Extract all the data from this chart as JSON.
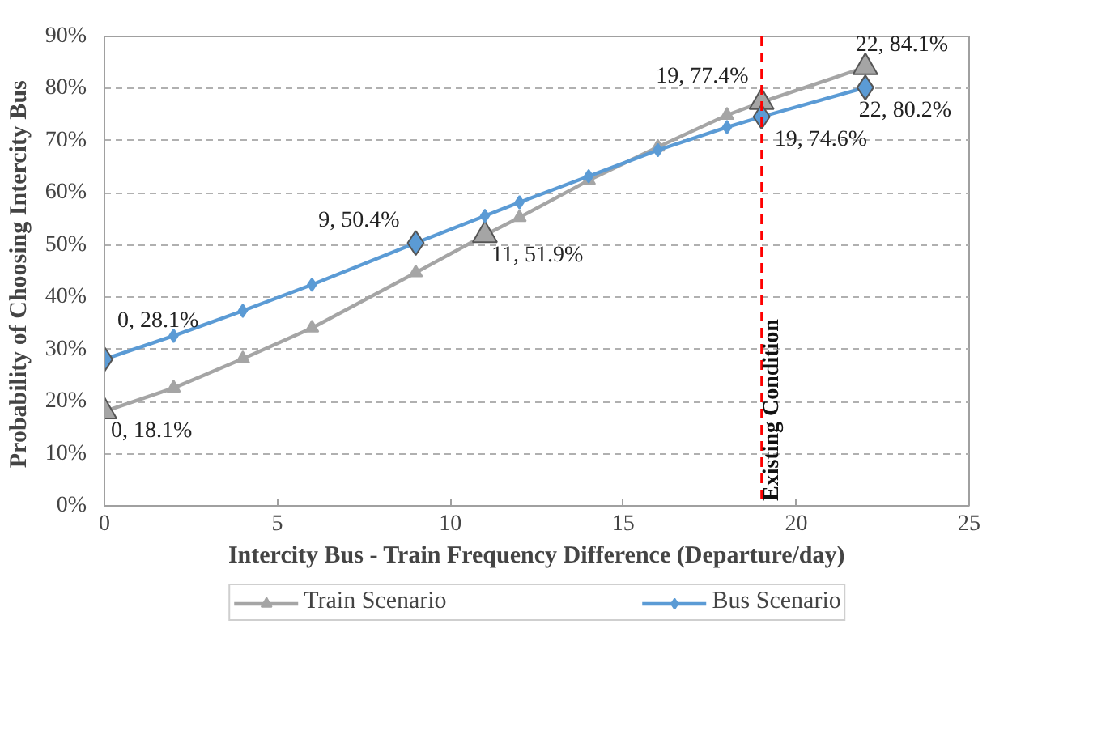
{
  "chart_data": {
    "type": "line",
    "xlabel": "Intercity Bus - Train Frequency Difference (Departure/day)",
    "ylabel": "Probability of Choosing  Intercity Bus",
    "xlim": [
      0,
      25
    ],
    "xticks": [
      0,
      5,
      10,
      15,
      20,
      25
    ],
    "ylim": [
      0,
      90
    ],
    "yticks": [
      {
        "value": 0,
        "label": "0%"
      },
      {
        "value": 10,
        "label": "10%"
      },
      {
        "value": 20,
        "label": "20%"
      },
      {
        "value": 30,
        "label": "30%"
      },
      {
        "value": 40,
        "label": "40%"
      },
      {
        "value": 50,
        "label": "50%"
      },
      {
        "value": 60,
        "label": "60%"
      },
      {
        "value": 70,
        "label": "70%"
      },
      {
        "value": 80,
        "label": "80%"
      },
      {
        "value": 90,
        "label": "90%"
      }
    ],
    "x": [
      0,
      2,
      4,
      6,
      9,
      11,
      12,
      14,
      16,
      18,
      19,
      22
    ],
    "series": [
      {
        "name": "Train Scenario",
        "color": "#a5a5a5",
        "marker": "triangle",
        "values": [
          18.1,
          22.6,
          28.2,
          34.1,
          44.7,
          51.9,
          55.3,
          62.4,
          68.8,
          74.9,
          77.4,
          84.1
        ],
        "value_labels": [
          "0, 18.1%",
          null,
          null,
          null,
          null,
          "11, 51.9%",
          null,
          null,
          null,
          null,
          "19, 77.4%",
          "22, 84.1%"
        ]
      },
      {
        "name": "Bus Scenario",
        "color": "#5b9bd5",
        "marker": "diamond",
        "values": [
          28.1,
          32.6,
          37.4,
          42.4,
          50.4,
          55.6,
          58.2,
          63.2,
          68.2,
          72.6,
          74.6,
          80.2
        ],
        "value_labels": [
          "0, 28.1%",
          null,
          null,
          null,
          "9, 50.4%",
          null,
          null,
          null,
          null,
          null,
          "19, 74.6%",
          "22, 80.2%"
        ]
      }
    ],
    "ref_lines": [
      {
        "axis": "x",
        "value": 19,
        "label": "Existing Condition",
        "color": "#ff0000",
        "line_style": "dashed"
      }
    ],
    "grid": "y",
    "legend": "bottom",
    "line_style": "solid"
  }
}
